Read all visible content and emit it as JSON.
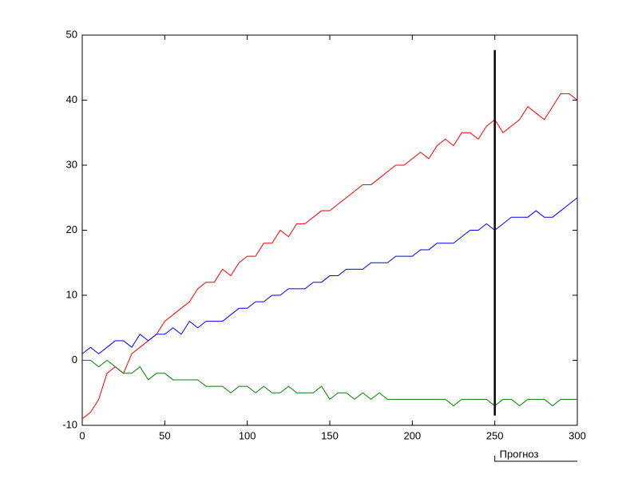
{
  "chart_data": {
    "type": "line",
    "x": [
      0,
      5,
      10,
      15,
      20,
      25,
      30,
      35,
      40,
      45,
      50,
      55,
      60,
      65,
      70,
      75,
      80,
      85,
      90,
      95,
      100,
      105,
      110,
      115,
      120,
      125,
      130,
      135,
      140,
      145,
      150,
      155,
      160,
      165,
      170,
      175,
      180,
      185,
      190,
      195,
      200,
      205,
      210,
      215,
      220,
      225,
      230,
      235,
      240,
      245,
      250,
      255,
      260,
      265,
      270,
      275,
      280,
      285,
      290,
      295,
      300
    ],
    "series": [
      {
        "color": "#ff0000",
        "values": [
          -9,
          -8,
          -6,
          -2,
          -1,
          -2,
          1,
          2,
          3,
          4,
          6,
          7,
          8,
          9,
          11,
          12,
          12,
          14,
          13,
          15,
          16,
          16,
          18,
          18,
          20,
          19,
          21,
          21,
          22,
          23,
          23,
          24,
          25,
          26,
          27,
          27,
          28,
          29,
          30,
          30,
          31,
          32,
          31,
          33,
          34,
          33,
          35,
          35,
          34,
          36,
          37,
          35,
          36,
          37,
          39,
          38,
          37,
          39,
          41,
          41,
          40
        ]
      },
      {
        "color": "#0000ff",
        "values": [
          1,
          2,
          1,
          2,
          3,
          3,
          2,
          4,
          3,
          4,
          4,
          5,
          4,
          6,
          5,
          6,
          6,
          6,
          7,
          8,
          8,
          9,
          9,
          10,
          10,
          11,
          11,
          11,
          12,
          12,
          13,
          13,
          14,
          14,
          14,
          15,
          15,
          15,
          16,
          16,
          16,
          17,
          17,
          18,
          18,
          18,
          19,
          20,
          20,
          21,
          20,
          21,
          22,
          22,
          22,
          23,
          22,
          22,
          23,
          24,
          25
        ]
      },
      {
        "color": "#008000",
        "values": [
          0,
          0,
          -1,
          0,
          -1,
          -2,
          -2,
          -1,
          -3,
          -2,
          -2,
          -3,
          -3,
          -3,
          -3,
          -4,
          -4,
          -4,
          -5,
          -4,
          -4,
          -5,
          -4,
          -5,
          -5,
          -4,
          -5,
          -5,
          -5,
          -4,
          -6,
          -5,
          -5,
          -6,
          -5,
          -6,
          -5,
          -6,
          -6,
          -6,
          -6,
          -6,
          -6,
          -6,
          -6,
          -7,
          -6,
          -6,
          -6,
          -6,
          -7,
          -6,
          -6,
          -7,
          -6,
          -6,
          -6,
          -7,
          -6,
          -6,
          -6
        ]
      }
    ],
    "xlim": [
      0,
      300
    ],
    "xticks": [
      0,
      50,
      100,
      150,
      200,
      250,
      300
    ],
    "ylim": [
      -10,
      50
    ],
    "yticks": [
      -10,
      0,
      10,
      20,
      30,
      40,
      50
    ],
    "vline": {
      "x": 250,
      "y": [
        -8.5,
        47.7
      ],
      "color": "#000000"
    },
    "annotation": {
      "text": "Прогноз",
      "x": [
        250,
        300
      ]
    }
  }
}
